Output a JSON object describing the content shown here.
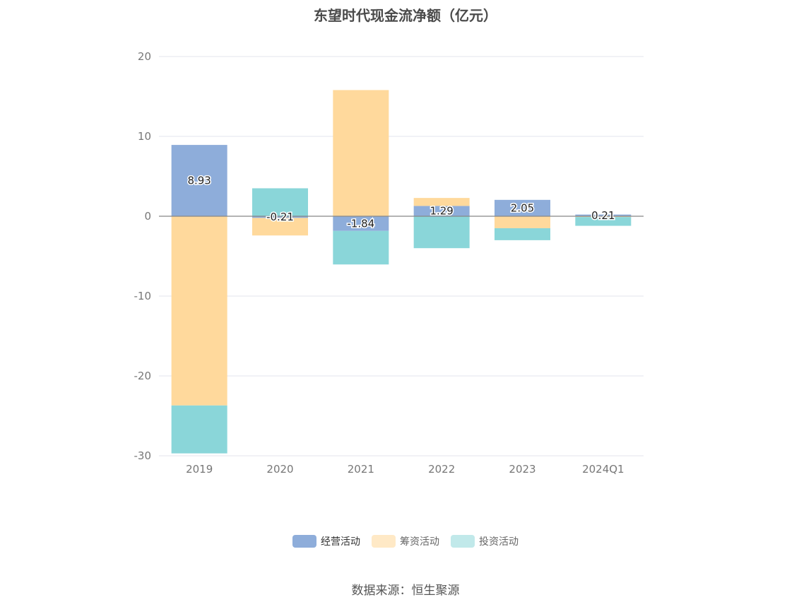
{
  "chart_data": {
    "type": "bar",
    "stacked": true,
    "title": "东望时代现金流净额（亿元）",
    "categories": [
      "2019",
      "2020",
      "2021",
      "2022",
      "2023",
      "2024Q1"
    ],
    "ylim": [
      -30,
      20
    ],
    "yticks": [
      -30,
      -20,
      -10,
      0,
      10,
      20
    ],
    "grid": true,
    "legend_position": "bottom",
    "series": [
      {
        "name": "经营活动",
        "color": "#8eadda",
        "values": [
          8.93,
          -0.21,
          -1.84,
          1.29,
          2.05,
          0.21
        ]
      },
      {
        "name": "筹资活动",
        "color": "#ffd99c",
        "values": [
          -23.7,
          -2.2,
          15.8,
          1.0,
          -1.5,
          -0.1
        ]
      },
      {
        "name": "投资活动",
        "color": "#8ad6d9",
        "values": [
          -6.0,
          3.5,
          -4.2,
          -4.0,
          -1.5,
          -1.1
        ]
      }
    ],
    "data_labels": [
      "8.93",
      "-0.21",
      "-1.84",
      "1.29",
      "2.05",
      "0.21"
    ]
  },
  "legend": {
    "items": [
      {
        "label": "经营活动",
        "color": "#8eadda"
      },
      {
        "label": "筹资活动",
        "color": "#ffe9c6"
      },
      {
        "label": "投资活动",
        "color": "#c1e9ea"
      }
    ]
  },
  "source": "数据来源：恒生聚源"
}
